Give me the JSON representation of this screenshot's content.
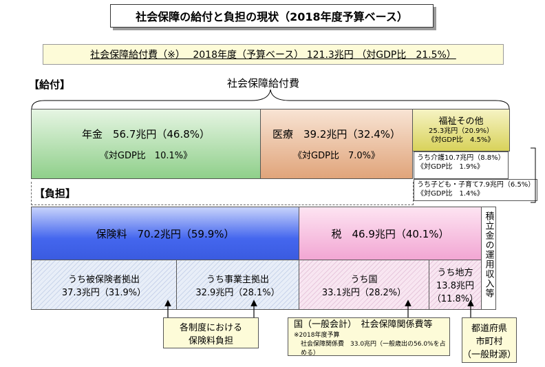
{
  "title": "社会保障の給付と負担の現状（2018年度予算ベース）",
  "summary": "社会保障給付費（※）　 2018年度（予算ベース） 121.3兆円 （対GDP比　21.5%）",
  "benefit_section": {
    "label": "【給付】",
    "brace_label": "社会保障給付費",
    "pension": {
      "line1": "年金　56.7兆円（46.8%）",
      "line2": "《対GDP比　10.1%》"
    },
    "medical": {
      "line1": "医療　39.2兆円（32.4%）",
      "line2": "《対GDP比　7.0%》"
    },
    "welfare": {
      "line1": "福祉その他",
      "line2": "25.3兆円（20.9%）",
      "line3": "《対GDP比　4.5%》",
      "care_line1": "うち介護10.7兆円（8.8%）",
      "care_line2": "《対GDP比　1.9%》",
      "child_line1": "うち子ども・子育て7.9兆円（6.5%）",
      "child_line2": "《対GDP比　1.4%》"
    }
  },
  "burden_section": {
    "label": "【負担】",
    "insurance": {
      "label": "保険料　70.2兆円（59.9%）"
    },
    "tax": {
      "label": "税　46.9兆円（40.1%）"
    },
    "reserve": {
      "label": "積立金の運用収入等"
    },
    "insured": {
      "line1": "うち被保険者拠出",
      "line2": "37.3兆円（31.9%）"
    },
    "employer": {
      "line1": "うち事業主拠出",
      "line2": "32.9兆円（28.1%）"
    },
    "national": {
      "line1": "うち国",
      "line2": "33.1兆円（28.2%）"
    },
    "local": {
      "line1": "うち地方",
      "line2": "13.8兆円",
      "line3": "（11.8%）"
    }
  },
  "callouts": {
    "premium": {
      "line1": "各制度における",
      "line2": "保険料負担"
    },
    "national": {
      "line1": "国（一般会計）　社会保障関係費等",
      "line2": "※2018年度予算",
      "line3": "社会保障関係費　33.0兆円（一般歳出の56.0%を占める）"
    },
    "local": {
      "line1": "都道府県",
      "line2": "市町村",
      "line3": "（一般財源）"
    }
  },
  "colors": {
    "pension": "#8fcf8a",
    "medical": "#e0a47a",
    "welfare": "#d8d25a",
    "insurance": "#4466ee",
    "tax": "#f2a6d3",
    "callout": "#fdfbd8"
  }
}
